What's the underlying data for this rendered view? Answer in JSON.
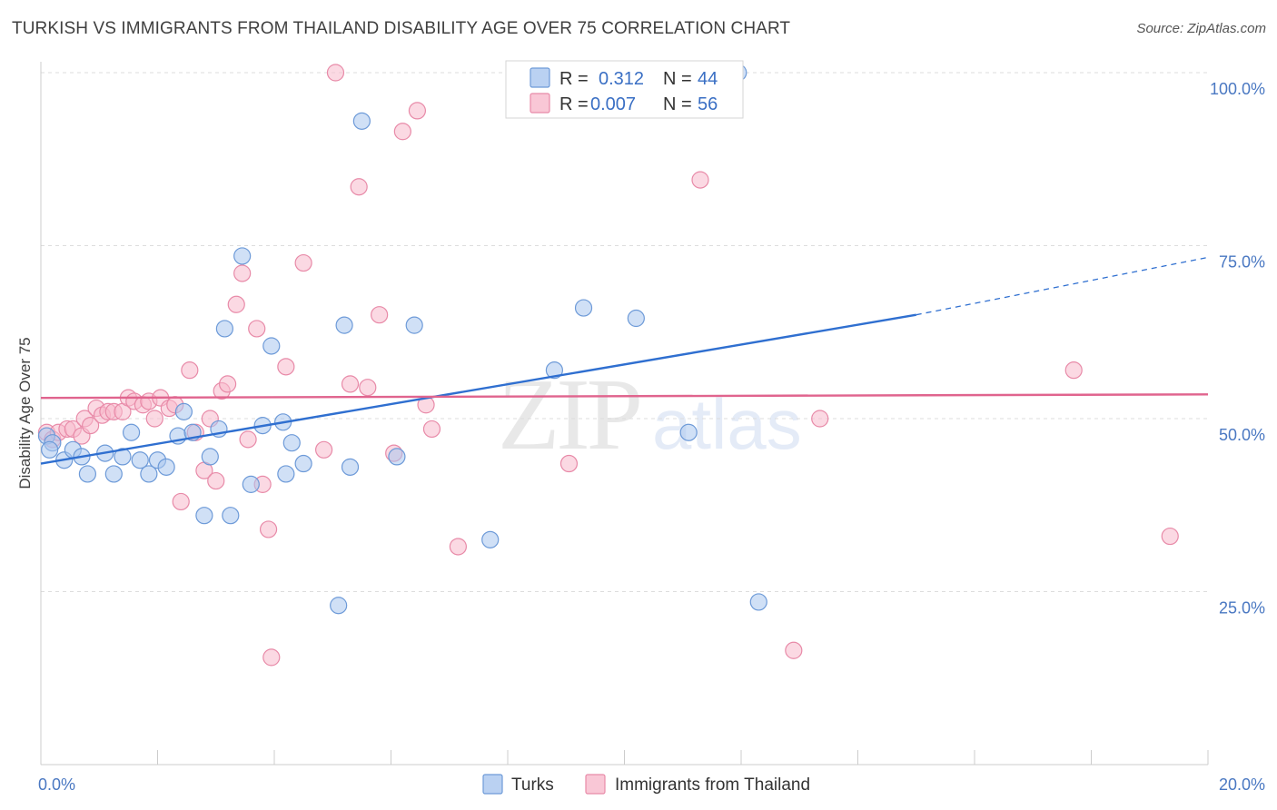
{
  "title": "TURKISH VS IMMIGRANTS FROM THAILAND DISABILITY AGE OVER 75 CORRELATION CHART",
  "source": "Source: ZipAtlas.com",
  "colors": {
    "turks_fill": "#a9c6ef",
    "turks_stroke": "#6d9ad8",
    "turks_line": "#2f6fd0",
    "thai_fill": "#f7b9cc",
    "thai_stroke": "#e88aa8",
    "thai_line": "#e0648e",
    "tick_label": "#4a78c2",
    "grid": "#dddddd"
  },
  "legend": {
    "rows": [
      {
        "r_label": "R =",
        "r_value": "0.312",
        "n_label": "N =",
        "n_value": "44"
      },
      {
        "r_label": "R =",
        "r_value": "0.007",
        "n_label": "N =",
        "n_value": "56"
      }
    ]
  },
  "bottom_legend": [
    "Turks",
    "Immigrants from Thailand"
  ],
  "chart_data": {
    "type": "scatter",
    "title": "TURKISH VS IMMIGRANTS FROM THAILAND DISABILITY AGE OVER 75 CORRELATION CHART",
    "xlabel": "",
    "ylabel": "Disability Age Over 75",
    "xlim": [
      0,
      20
    ],
    "ylim": [
      0,
      105
    ],
    "x_tick_labels": [
      "0.0%",
      "20.0%"
    ],
    "y_ticks": [
      25,
      50,
      75,
      100
    ],
    "y_tick_labels": [
      "25.0%",
      "50.0%",
      "75.0%",
      "100.0%"
    ],
    "grid": true,
    "legend_position": "top-center",
    "series": [
      {
        "name": "Turks",
        "r": 0.312,
        "n": 44,
        "trend": {
          "x0": 0,
          "y0": 43.5,
          "x1": 15,
          "y1": 65.0,
          "x_dash_end": 20,
          "y_dash_end": 73.3
        },
        "points": [
          [
            0.1,
            47.5
          ],
          [
            0.2,
            46.5
          ],
          [
            0.4,
            44.0
          ],
          [
            0.55,
            45.5
          ],
          [
            0.7,
            44.5
          ],
          [
            0.8,
            42.0
          ],
          [
            1.1,
            45.0
          ],
          [
            1.25,
            42.0
          ],
          [
            1.4,
            44.5
          ],
          [
            1.55,
            48.0
          ],
          [
            1.7,
            44.0
          ],
          [
            1.85,
            42.0
          ],
          [
            2.0,
            44.0
          ],
          [
            2.15,
            43.0
          ],
          [
            2.35,
            47.5
          ],
          [
            2.45,
            51.0
          ],
          [
            2.6,
            48.0
          ],
          [
            2.8,
            36.0
          ],
          [
            2.9,
            44.5
          ],
          [
            3.05,
            48.5
          ],
          [
            3.15,
            63.0
          ],
          [
            3.25,
            36.0
          ],
          [
            3.45,
            73.5
          ],
          [
            3.6,
            40.5
          ],
          [
            3.8,
            49.0
          ],
          [
            3.95,
            60.5
          ],
          [
            4.15,
            49.5
          ],
          [
            4.2,
            42.0
          ],
          [
            4.3,
            46.5
          ],
          [
            4.5,
            43.5
          ],
          [
            5.1,
            23.0
          ],
          [
            5.2,
            63.5
          ],
          [
            5.3,
            43.0
          ],
          [
            5.5,
            93.0
          ],
          [
            6.1,
            44.5
          ],
          [
            6.4,
            63.5
          ],
          [
            7.7,
            32.5
          ],
          [
            8.8,
            57.0
          ],
          [
            9.3,
            66.0
          ],
          [
            10.2,
            64.5
          ],
          [
            11.1,
            48.0
          ],
          [
            11.95,
            100.0
          ],
          [
            12.3,
            23.5
          ],
          [
            0.15,
            45.5
          ]
        ]
      },
      {
        "name": "Immigrants from Thailand",
        "r": 0.007,
        "n": 56,
        "trend": {
          "x0": 0,
          "y0": 53.0,
          "x1": 20,
          "y1": 53.5
        },
        "points": [
          [
            0.1,
            48.0
          ],
          [
            0.2,
            47.0
          ],
          [
            0.3,
            48.0
          ],
          [
            0.45,
            48.5
          ],
          [
            0.55,
            48.5
          ],
          [
            0.7,
            47.5
          ],
          [
            0.75,
            50.0
          ],
          [
            0.85,
            49.0
          ],
          [
            0.95,
            51.5
          ],
          [
            1.05,
            50.5
          ],
          [
            1.15,
            51.0
          ],
          [
            1.25,
            51.0
          ],
          [
            1.4,
            51.0
          ],
          [
            1.5,
            53.0
          ],
          [
            1.6,
            52.5
          ],
          [
            1.75,
            52.0
          ],
          [
            1.85,
            52.5
          ],
          [
            1.95,
            50.0
          ],
          [
            2.05,
            53.0
          ],
          [
            2.2,
            51.5
          ],
          [
            2.3,
            52.0
          ],
          [
            2.4,
            38.0
          ],
          [
            2.55,
            57.0
          ],
          [
            2.65,
            48.0
          ],
          [
            2.8,
            42.5
          ],
          [
            2.9,
            50.0
          ],
          [
            3.0,
            41.0
          ],
          [
            3.1,
            54.0
          ],
          [
            3.2,
            55.0
          ],
          [
            3.35,
            66.5
          ],
          [
            3.45,
            71.0
          ],
          [
            3.55,
            47.0
          ],
          [
            3.7,
            63.0
          ],
          [
            3.8,
            40.5
          ],
          [
            3.9,
            34.0
          ],
          [
            3.95,
            15.5
          ],
          [
            4.2,
            57.5
          ],
          [
            4.5,
            72.5
          ],
          [
            4.85,
            45.5
          ],
          [
            5.05,
            100.0
          ],
          [
            5.3,
            55.0
          ],
          [
            5.45,
            83.5
          ],
          [
            5.6,
            54.5
          ],
          [
            5.8,
            65.0
          ],
          [
            6.05,
            45.0
          ],
          [
            6.2,
            91.5
          ],
          [
            6.45,
            94.5
          ],
          [
            6.6,
            52.0
          ],
          [
            6.7,
            48.5
          ],
          [
            7.15,
            31.5
          ],
          [
            9.05,
            43.5
          ],
          [
            11.3,
            84.5
          ],
          [
            12.9,
            16.5
          ],
          [
            13.35,
            50.0
          ],
          [
            17.7,
            57.0
          ],
          [
            19.35,
            33.0
          ]
        ]
      }
    ]
  }
}
